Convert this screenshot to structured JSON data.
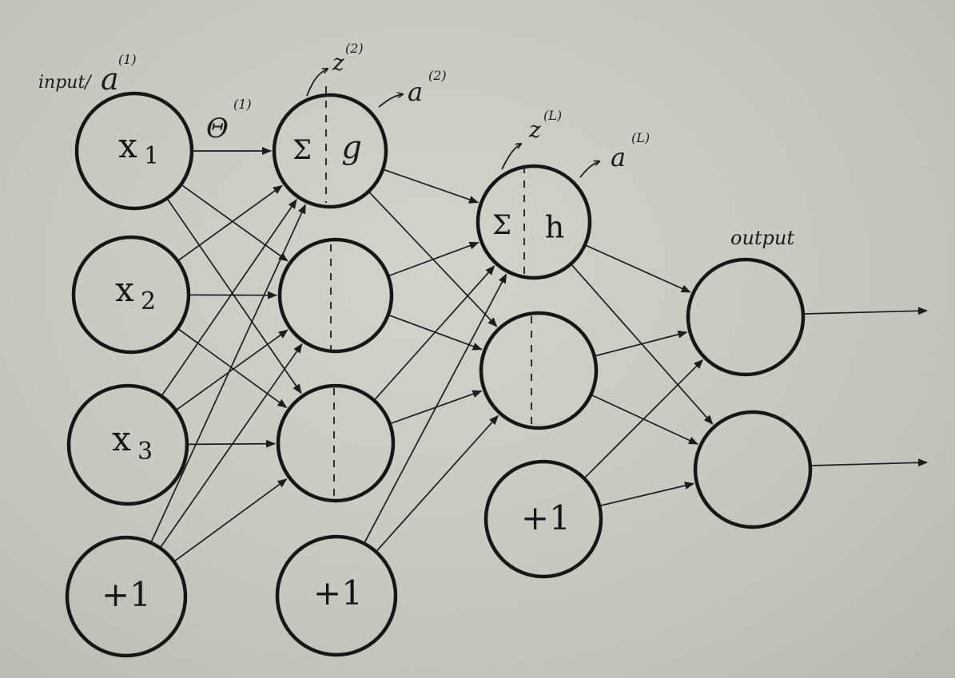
{
  "labels": {
    "input_label": "input/",
    "input_symbol": "a",
    "input_sup": "(1)",
    "theta_symbol": "Θ",
    "theta_sup": "(1)",
    "z2_symbol": "z",
    "z2_sup": "(2)",
    "a2_symbol": "a",
    "a2_sup": "(2)",
    "zL_symbol": "z",
    "zL_sup": "(L)",
    "aL_symbol": "a",
    "aL_sup": "(L)",
    "output_label": "output"
  },
  "nodes": {
    "x1": {
      "main": "x",
      "sub": "1"
    },
    "x2": {
      "main": "x",
      "sub": "2"
    },
    "x3": {
      "main": "x",
      "sub": "3"
    },
    "bias_input": "+1",
    "hidden1_sum": "Σ",
    "hidden1_activation": "g",
    "bias_hidden1": "+1",
    "hiddenL_sum": "Σ",
    "hiddenL_activation": "h",
    "bias_hiddenL": "+1"
  }
}
